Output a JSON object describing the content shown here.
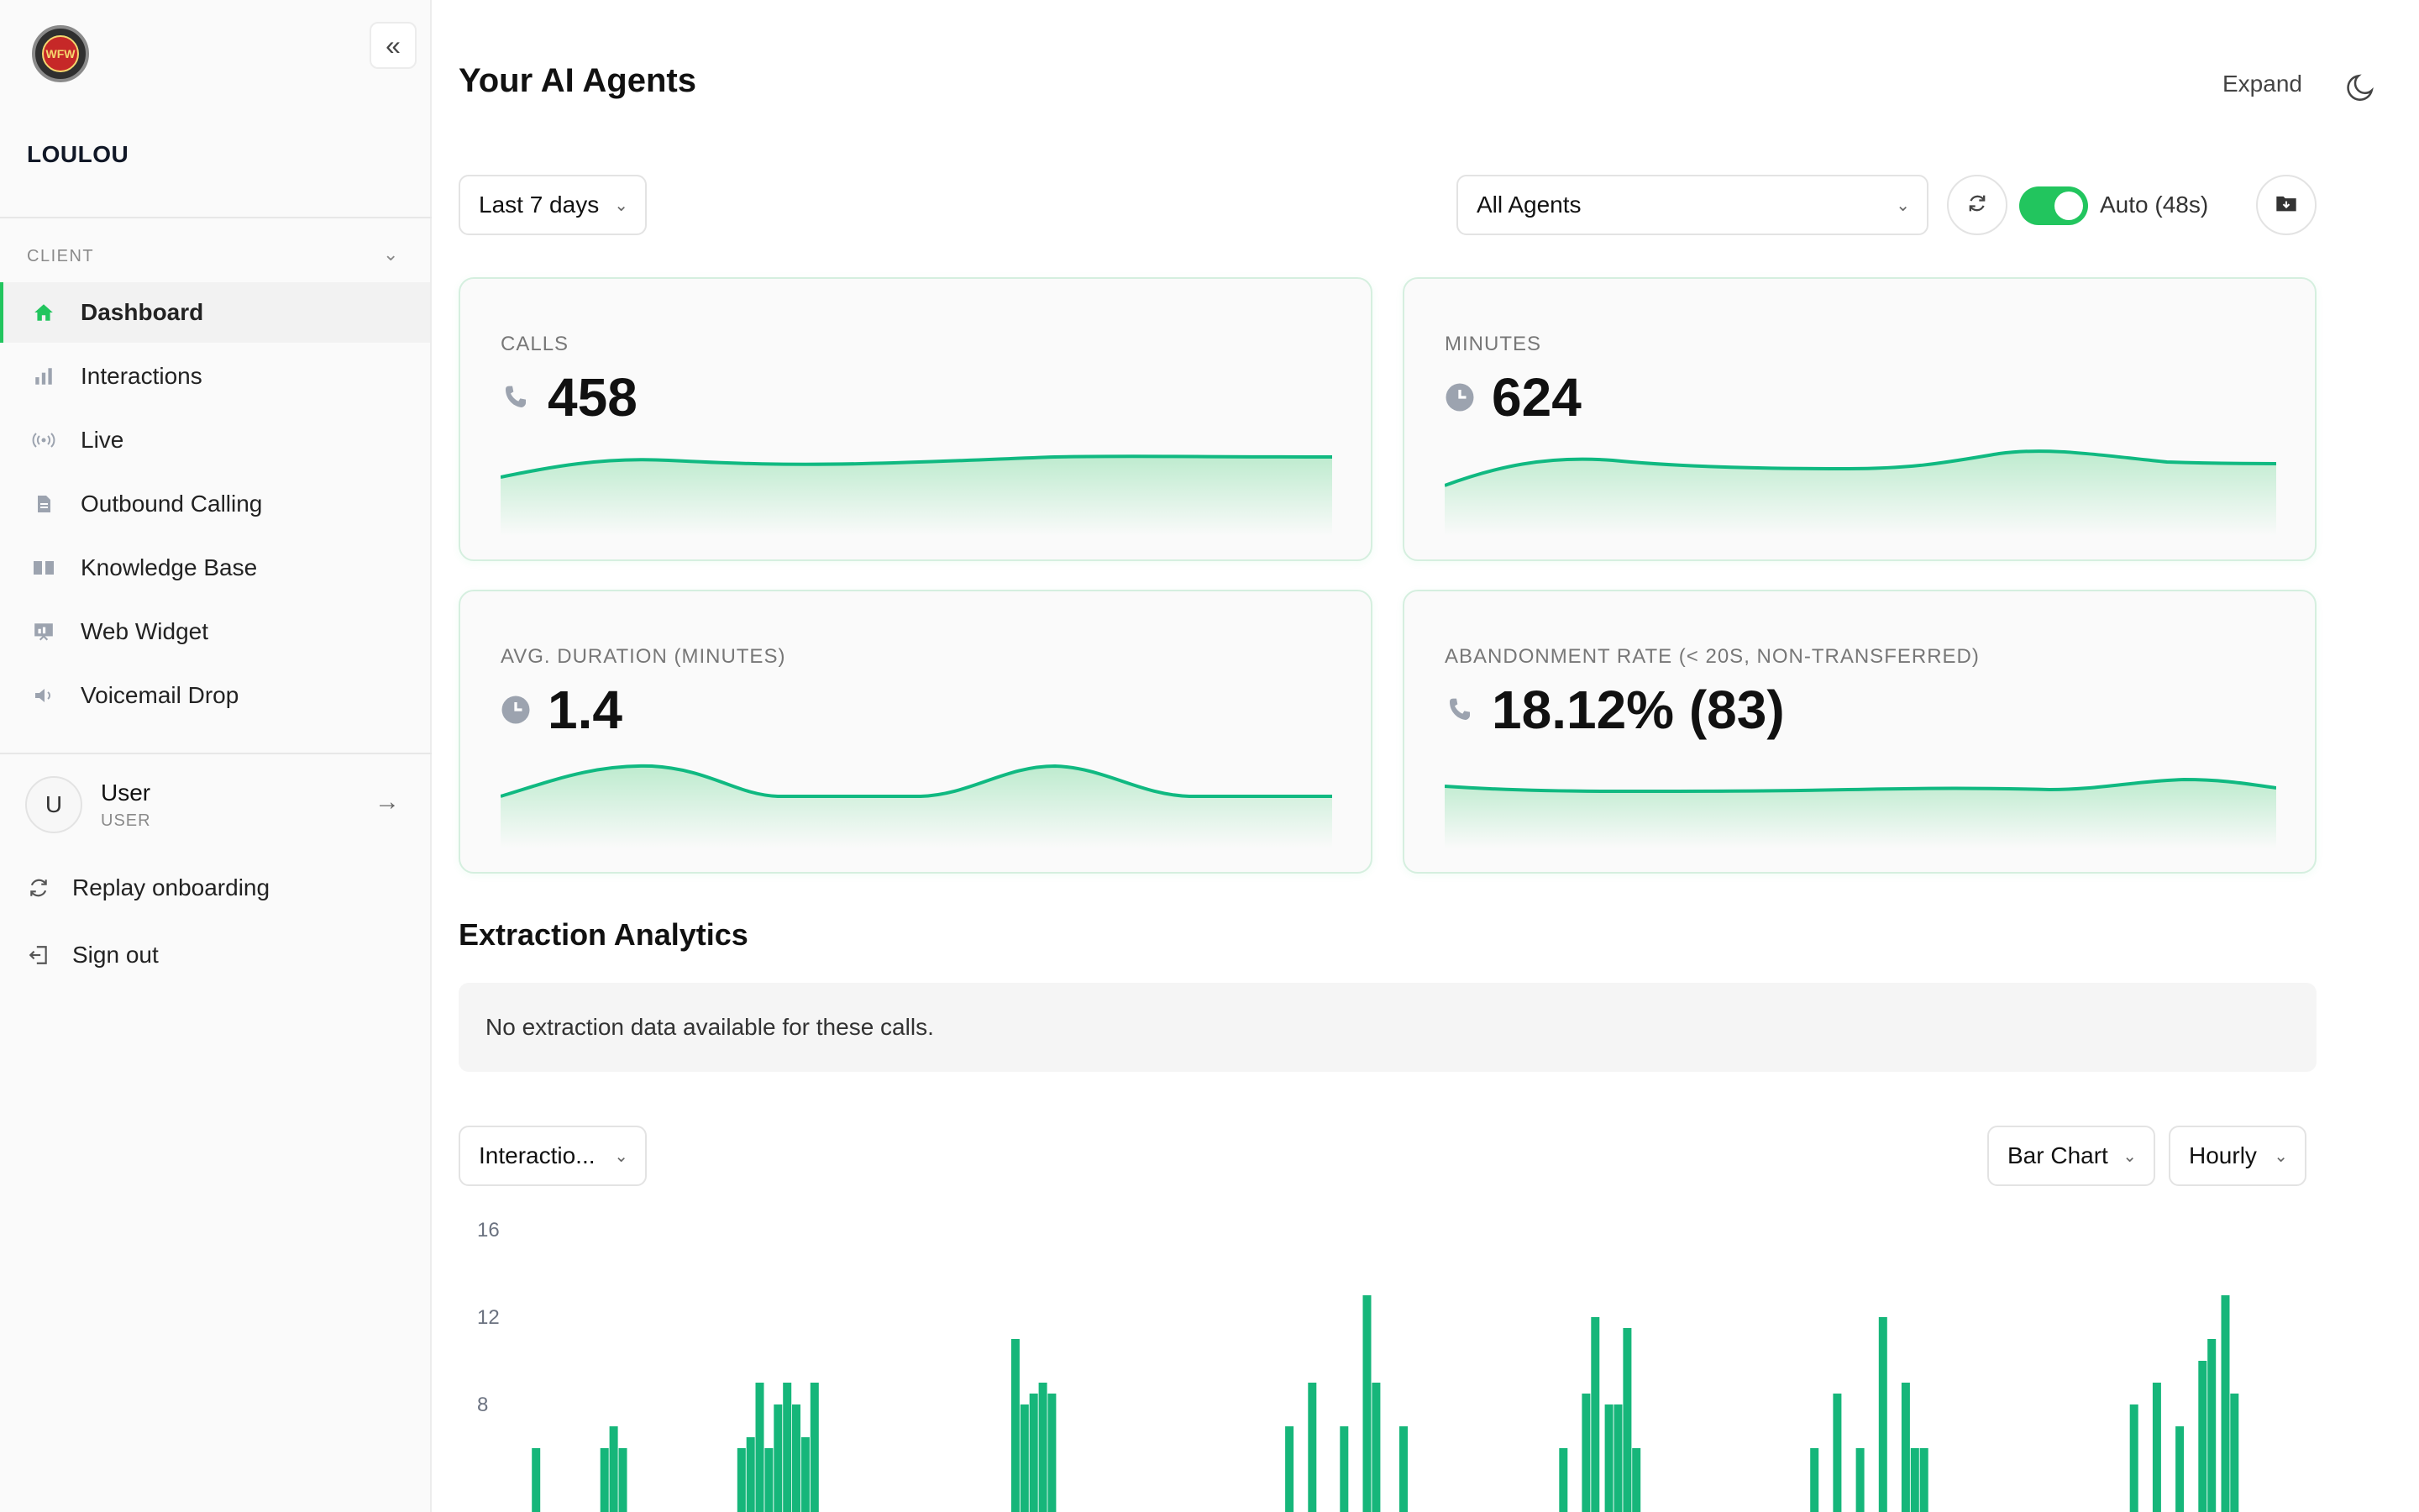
{
  "sidebar": {
    "logo_text": "WFW",
    "org_name": "LOULOU",
    "section_label": "CLIENT",
    "items": [
      {
        "label": "Dashboard",
        "icon": "home-icon",
        "active": true
      },
      {
        "label": "Interactions",
        "icon": "bar-chart-icon"
      },
      {
        "label": "Live",
        "icon": "broadcast-icon"
      },
      {
        "label": "Outbound Calling",
        "icon": "document-icon"
      },
      {
        "label": "Knowledge Base",
        "icon": "book-icon"
      },
      {
        "label": "Web Widget",
        "icon": "presentation-icon"
      },
      {
        "label": "Voicemail Drop",
        "icon": "speaker-icon"
      }
    ],
    "user": {
      "initial": "U",
      "name": "User",
      "role": "USER"
    },
    "replay_label": "Replay onboarding",
    "signout_label": "Sign out"
  },
  "header": {
    "title": "Your AI Agents",
    "expand_label": "Expand"
  },
  "filters": {
    "range": "Last 7 days",
    "agents": "All Agents",
    "auto_label": "Auto (48s)",
    "auto_enabled": true
  },
  "cards": [
    {
      "label": "CALLS",
      "value": "458",
      "icon": "phone-icon"
    },
    {
      "label": "MINUTES",
      "value": "624",
      "icon": "clock-icon"
    },
    {
      "label": "AVG. DURATION (MINUTES)",
      "value": "1.4",
      "icon": "clock-icon"
    },
    {
      "label": "ABANDONMENT RATE (< 20S, NON-TRANSFERRED)",
      "value": "18.12% (83)",
      "icon": "phone-icon"
    }
  ],
  "extraction": {
    "title": "Extraction Analytics",
    "empty_message": "No extraction data available for these calls."
  },
  "chart_controls": {
    "metric": "Interactio...",
    "chart_type": "Bar Chart",
    "granularity": "Hourly"
  },
  "colors": {
    "accent": "#22c55e",
    "bar": "#16b67a"
  },
  "chart_data": {
    "type": "bar",
    "title": "",
    "xlabel": "",
    "ylabel": "",
    "ylim": [
      0,
      16
    ],
    "yticks": [
      "16",
      "12",
      "8"
    ],
    "bars": [
      {
        "x": 1,
        "v": 6
      },
      {
        "x": 4,
        "v": 6
      },
      {
        "x": 4.4,
        "v": 7
      },
      {
        "x": 4.8,
        "v": 6
      },
      {
        "x": 10,
        "v": 6
      },
      {
        "x": 10.4,
        "v": 6.5
      },
      {
        "x": 10.8,
        "v": 9
      },
      {
        "x": 11.2,
        "v": 6
      },
      {
        "x": 11.6,
        "v": 8
      },
      {
        "x": 12,
        "v": 9
      },
      {
        "x": 12.4,
        "v": 8
      },
      {
        "x": 12.8,
        "v": 6.5
      },
      {
        "x": 13.2,
        "v": 9
      },
      {
        "x": 22,
        "v": 11
      },
      {
        "x": 22.4,
        "v": 8
      },
      {
        "x": 22.8,
        "v": 8.5
      },
      {
        "x": 23.2,
        "v": 9
      },
      {
        "x": 23.6,
        "v": 8.5
      },
      {
        "x": 34,
        "v": 7
      },
      {
        "x": 35,
        "v": 9
      },
      {
        "x": 36.4,
        "v": 7
      },
      {
        "x": 37.4,
        "v": 13
      },
      {
        "x": 37.8,
        "v": 9
      },
      {
        "x": 39,
        "v": 7
      },
      {
        "x": 46,
        "v": 6
      },
      {
        "x": 47,
        "v": 8.5
      },
      {
        "x": 47.4,
        "v": 12
      },
      {
        "x": 48,
        "v": 8
      },
      {
        "x": 48.4,
        "v": 8
      },
      {
        "x": 48.8,
        "v": 11.5
      },
      {
        "x": 49.2,
        "v": 6
      },
      {
        "x": 57,
        "v": 6
      },
      {
        "x": 58,
        "v": 8.5
      },
      {
        "x": 59,
        "v": 6
      },
      {
        "x": 60,
        "v": 12
      },
      {
        "x": 61,
        "v": 9
      },
      {
        "x": 61.4,
        "v": 6
      },
      {
        "x": 61.8,
        "v": 6
      },
      {
        "x": 71,
        "v": 8
      },
      {
        "x": 72,
        "v": 9
      },
      {
        "x": 73,
        "v": 7
      },
      {
        "x": 74,
        "v": 10
      },
      {
        "x": 74.4,
        "v": 11
      },
      {
        "x": 75,
        "v": 13
      },
      {
        "x": 75.4,
        "v": 8.5
      }
    ]
  }
}
